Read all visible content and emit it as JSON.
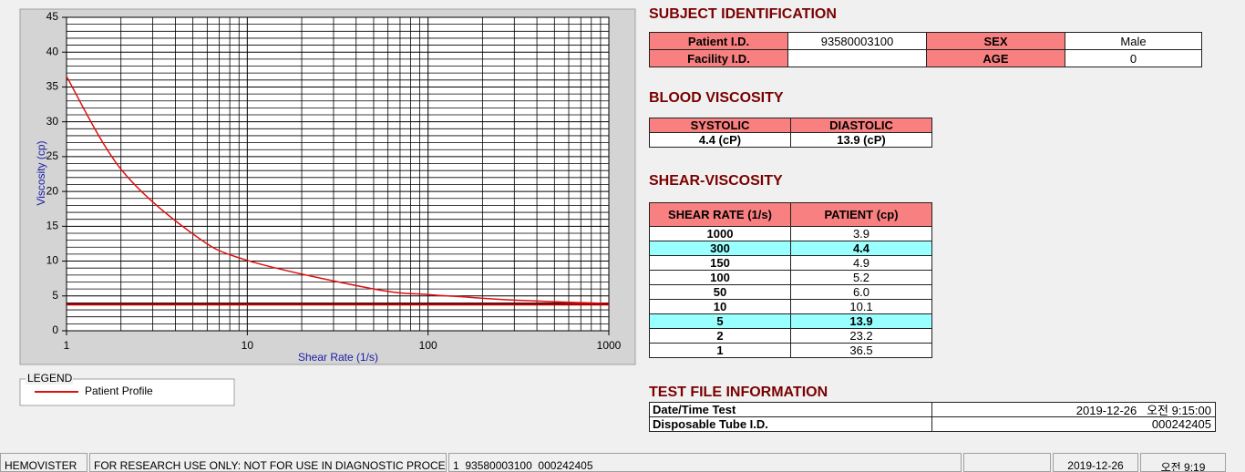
{
  "chart_data": {
    "type": "line",
    "x_label": "Shear Rate (1/s)",
    "y_label": "Viscosity (cp)",
    "legend_title": "LEGEND",
    "xscale": "log",
    "xlim": [
      1,
      1000
    ],
    "xticks": [
      1,
      10,
      100,
      1000
    ],
    "xminor": [
      2,
      3,
      4,
      5,
      6,
      7,
      8,
      9,
      20,
      30,
      40,
      50,
      60,
      70,
      80,
      90,
      200,
      300,
      400,
      500,
      600,
      700,
      800,
      900
    ],
    "ylim": [
      0,
      45
    ],
    "yticks": [
      0,
      5,
      10,
      15,
      20,
      25,
      30,
      35,
      40,
      45
    ],
    "yminor": [
      1,
      2,
      3,
      4,
      6,
      7,
      8,
      9,
      11,
      12,
      13,
      14,
      16,
      17,
      18,
      19,
      21,
      22,
      23,
      24,
      26,
      27,
      28,
      29,
      31,
      32,
      33,
      34,
      36,
      37,
      38,
      39,
      41,
      42,
      43,
      44
    ],
    "grid": true,
    "series": [
      {
        "name": "Patient Profile",
        "color": "#e01010",
        "x": [
          1,
          2,
          5,
          10,
          50,
          100,
          150,
          300,
          1000
        ],
        "values": [
          36.5,
          23.2,
          13.9,
          10.1,
          6.0,
          5.2,
          4.9,
          4.4,
          3.9
        ]
      },
      {
        "color": "#b00000",
        "x": [
          1,
          1000
        ],
        "values": [
          3.8,
          3.8
        ]
      }
    ]
  },
  "subject_identification": {
    "title": "SUBJECT IDENTIFICATION",
    "rows": [
      [
        "Patient I.D.",
        "93580003100",
        "SEX",
        "Male"
      ],
      [
        "Facility I.D.",
        null,
        "AGE",
        "0"
      ]
    ]
  },
  "blood_viscosity": {
    "title": "BLOOD VISCOSITY",
    "headers": [
      "SYSTOLIC",
      "DIASTOLIC"
    ],
    "values": [
      "4.4 (cP)",
      "13.9 (cP)"
    ]
  },
  "shear_viscosity": {
    "title": "SHEAR-VISCOSITY",
    "headers": [
      "SHEAR RATE (1/s)",
      "PATIENT (cp)"
    ],
    "rows": [
      [
        "1000",
        "3.9"
      ],
      [
        "300",
        "4.4"
      ],
      [
        "150",
        "4.9"
      ],
      [
        "100",
        "5.2"
      ],
      [
        "50",
        "6.0"
      ],
      [
        "10",
        "10.1"
      ],
      [
        "5",
        "13.9"
      ],
      [
        "2",
        "23.2"
      ],
      [
        "1",
        "36.5"
      ]
    ],
    "highlight": [
      1,
      6
    ]
  },
  "test_file": {
    "title": "TEST FILE INFORMATION",
    "rows": [
      [
        "Date/Time Test",
        "2019-12-26   오전 9:15:00"
      ],
      [
        "Disposable Tube I.D.",
        "000242405"
      ]
    ]
  },
  "status_bar": [
    "HEMOVISTER",
    "FOR RESEARCH USE ONLY: NOT FOR USE IN DIAGNOSTIC PROCEDURES",
    "1  93580003100  000242405",
    null,
    "2019-12-26",
    "오전 9:19"
  ]
}
